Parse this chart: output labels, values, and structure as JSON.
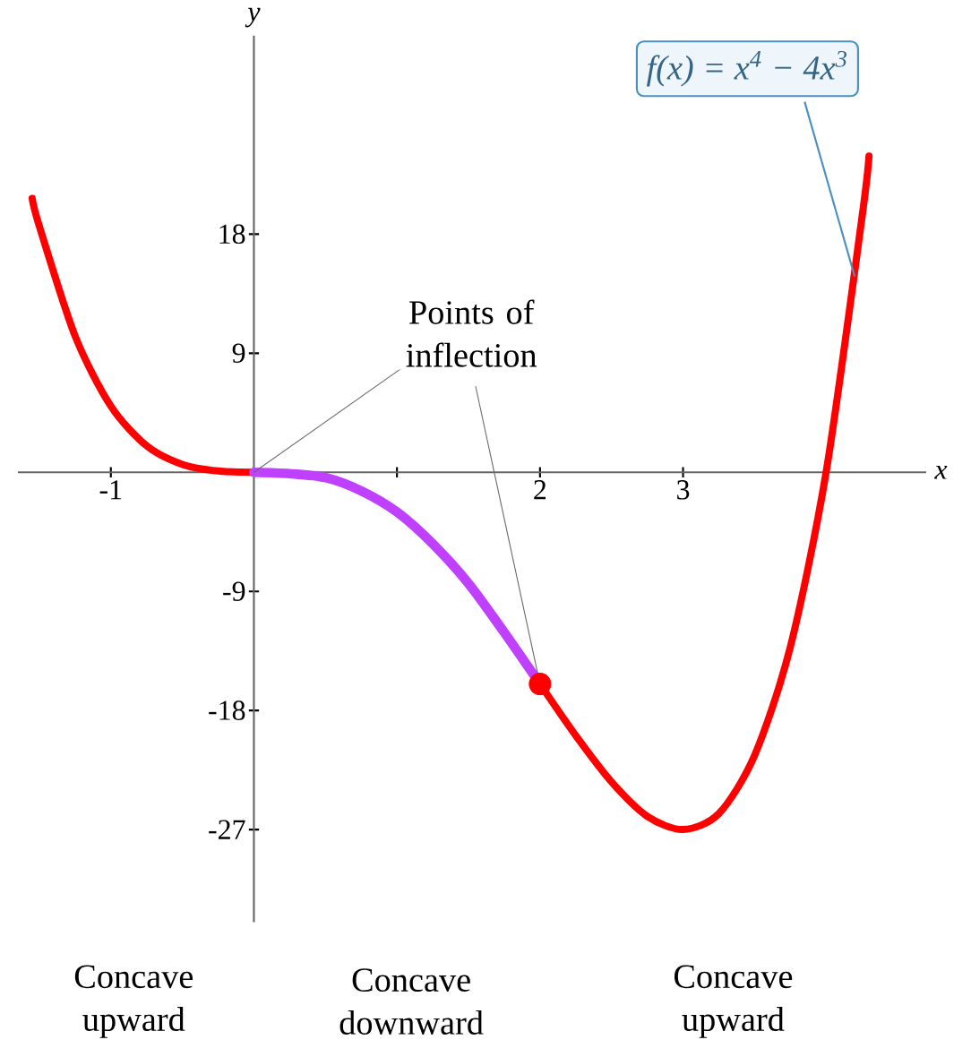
{
  "chart_data": {
    "type": "line",
    "xlabel": "x",
    "ylabel": "y",
    "xlim": [
      -1.65,
      4.7
    ],
    "ylim": [
      -34,
      33
    ],
    "xticks": [
      -1,
      {
        "value": 1,
        "label": null
      },
      2,
      3
    ],
    "yticks": [
      -27,
      -18,
      -9,
      9,
      18
    ],
    "series": [
      {
        "color": "#ff0000",
        "x": [
          -1.55,
          -1.5,
          -1.25,
          -1,
          -0.75,
          -0.5,
          -0.25,
          0
        ],
        "values": [
          20.7,
          18.6,
          10.3,
          5,
          2,
          0.6,
          0.1,
          0
        ]
      },
      {
        "color": "#c040ff",
        "x": [
          0,
          0.25,
          0.5,
          0.75,
          1,
          1.25,
          1.5,
          1.75,
          2
        ],
        "values": [
          0,
          -0.1,
          -0.4,
          -1.4,
          -3,
          -5.4,
          -8.4,
          -12.1,
          -16
        ]
      },
      {
        "color": "#ff0000",
        "x": [
          2,
          2.25,
          2.5,
          2.75,
          3,
          3.25,
          3.5,
          3.75,
          4,
          4.25,
          4.3
        ],
        "values": [
          -16,
          -19.9,
          -23.4,
          -26,
          -27,
          -25.8,
          -21.4,
          -13.2,
          0,
          19.2,
          23.9
        ]
      },
      {
        "type": "scatter",
        "color": "#ff0000",
        "x": [
          2
        ],
        "values": [
          -16
        ]
      }
    ],
    "annotations": [
      {
        "text": "f(x) = x$^{4}$ − 4x$^{3}$",
        "x": 4.2,
        "y": 14.8
      },
      {
        "text": "Points of inflection",
        "x": 2,
        "y": -16
      },
      "Concave upward",
      "Concave downward",
      "Concave upward"
    ]
  }
}
